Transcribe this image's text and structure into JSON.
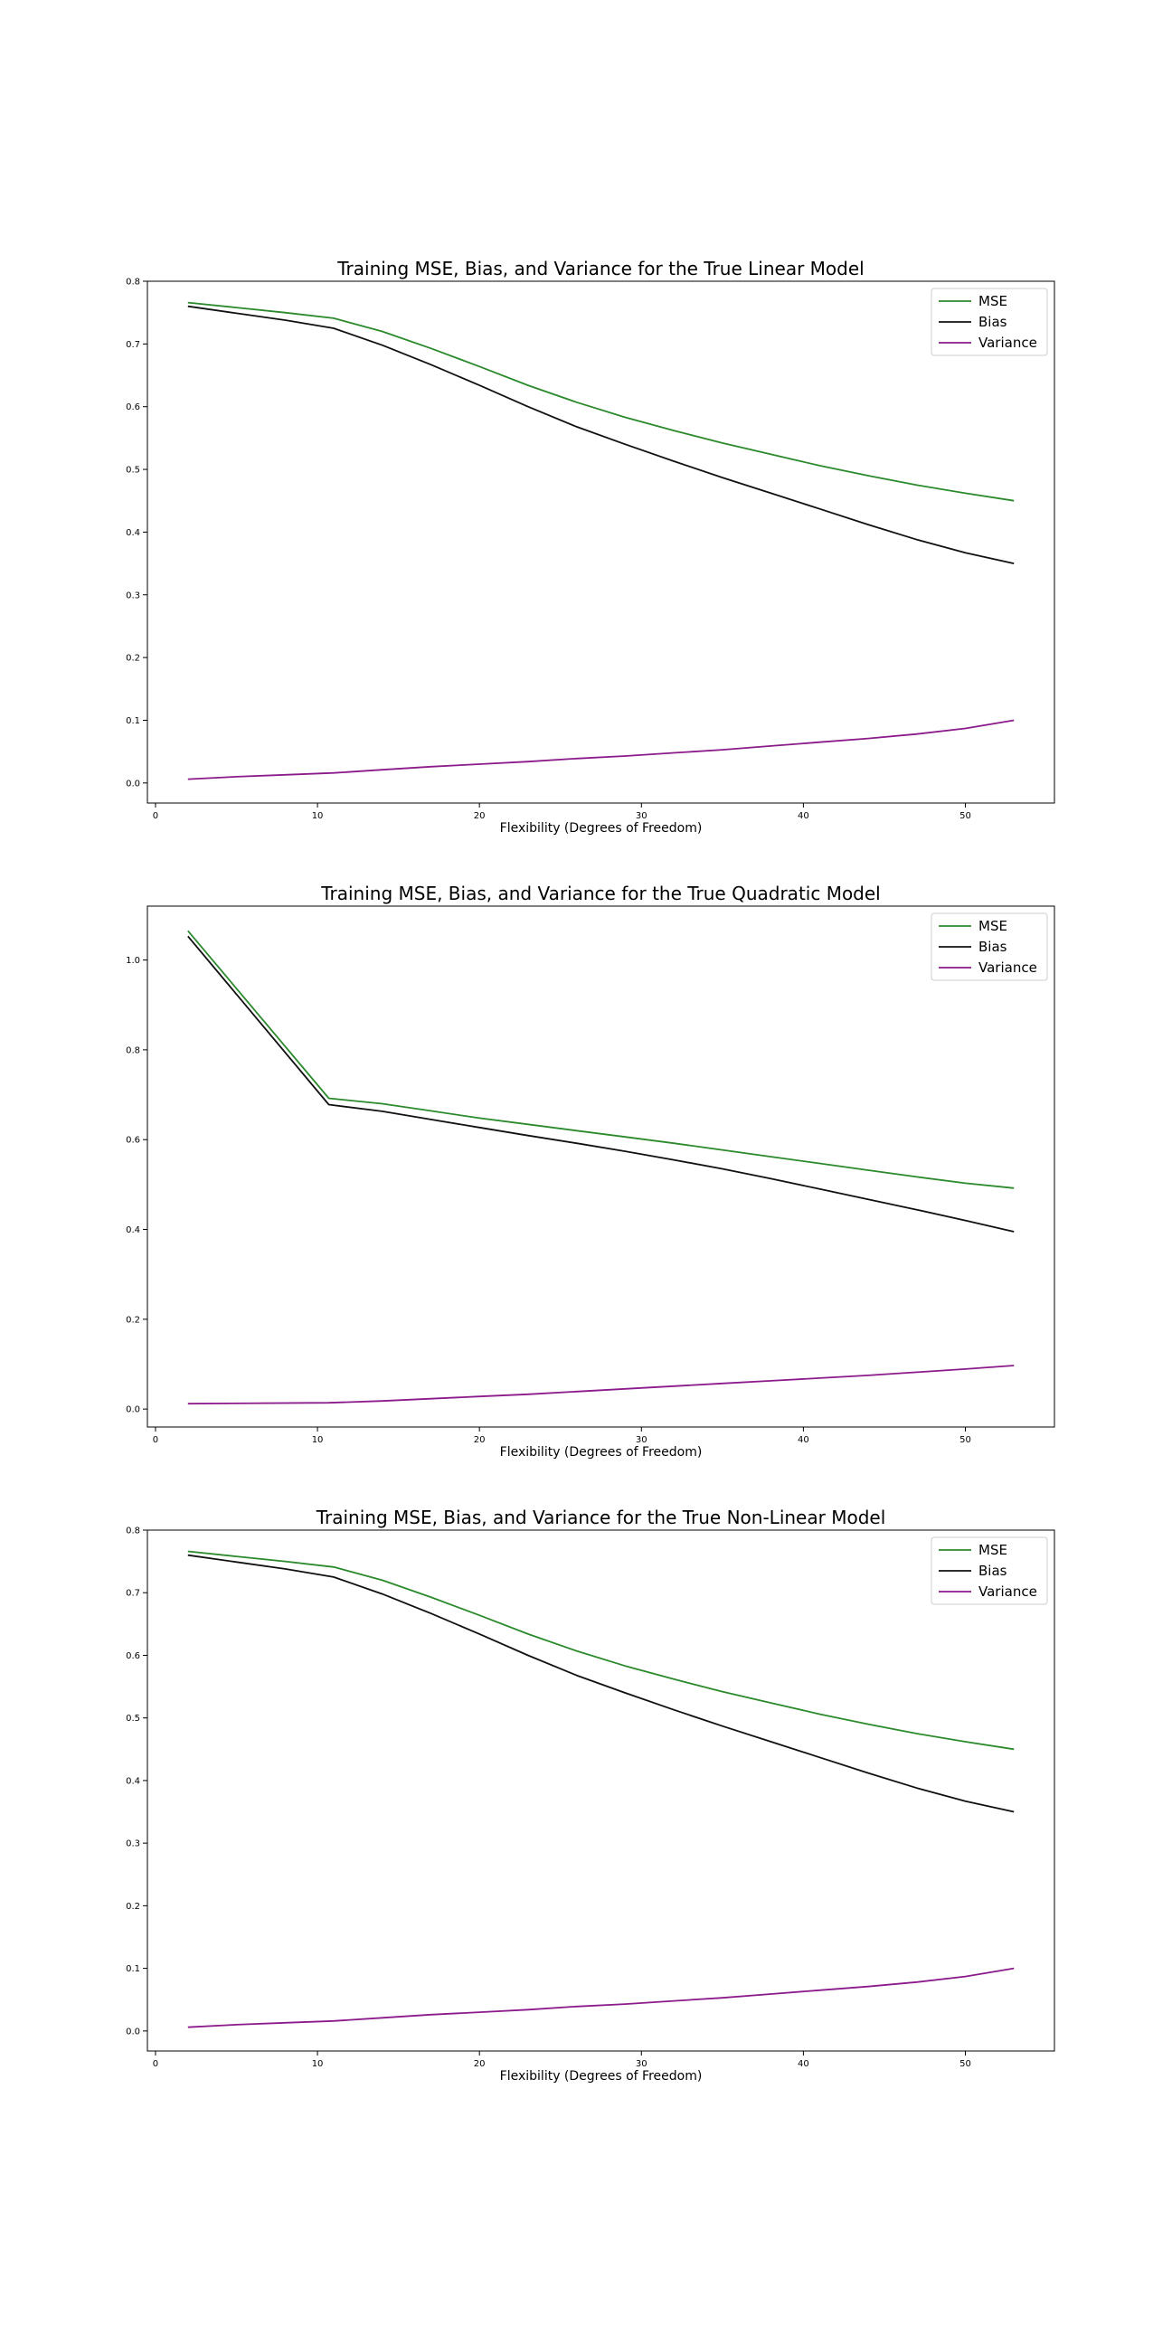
{
  "colors": {
    "mse": "#2b8a2b",
    "bias": "#111111",
    "variance": "#8b1a8b",
    "axes": "#000000",
    "background": "#ffffff"
  },
  "chart_data": [
    {
      "type": "line",
      "title": "Training MSE, Bias, and Variance for the True Linear Model",
      "xlabel": "Flexibility (Degrees of Freedom)",
      "ylabel": "",
      "xlim": [
        -0.5,
        55.5
      ],
      "ylim": [
        -0.032,
        0.8
      ],
      "xticks": [
        0,
        10,
        20,
        30,
        40,
        50
      ],
      "xtick_labels": [
        "0",
        "10",
        "20",
        "30",
        "40",
        "50"
      ],
      "yticks": [
        0.0,
        0.1,
        0.2,
        0.3,
        0.4,
        0.5,
        0.6,
        0.7,
        0.8
      ],
      "ytick_labels": [
        "0.0",
        "0.1",
        "0.2",
        "0.3",
        "0.4",
        "0.5",
        "0.6",
        "0.7",
        "0.8"
      ],
      "grid": false,
      "legend": "upper-right",
      "x": [
        2,
        5,
        8,
        11,
        14,
        17,
        20,
        23,
        26,
        29,
        32,
        35,
        38,
        41,
        44,
        47,
        50,
        53
      ],
      "series": [
        {
          "name": "MSE",
          "color_key": "mse",
          "values": [
            0.766,
            0.758,
            0.75,
            0.741,
            0.72,
            0.693,
            0.664,
            0.634,
            0.607,
            0.583,
            0.562,
            0.542,
            0.524,
            0.506,
            0.49,
            0.475,
            0.462,
            0.45
          ]
        },
        {
          "name": "Bias",
          "color_key": "bias",
          "values": [
            0.76,
            0.749,
            0.738,
            0.725,
            0.698,
            0.667,
            0.634,
            0.6,
            0.568,
            0.54,
            0.513,
            0.487,
            0.462,
            0.437,
            0.412,
            0.388,
            0.367,
            0.35
          ]
        },
        {
          "name": "Variance",
          "color_key": "variance",
          "values": [
            0.006,
            0.01,
            0.013,
            0.016,
            0.021,
            0.026,
            0.03,
            0.034,
            0.039,
            0.043,
            0.048,
            0.053,
            0.059,
            0.065,
            0.071,
            0.078,
            0.087,
            0.1
          ]
        }
      ]
    },
    {
      "type": "line",
      "title": "Training MSE, Bias, and Variance for the True Quadratic Model",
      "xlabel": "Flexibility (Degrees of Freedom)",
      "ylabel": "",
      "xlim": [
        -0.5,
        55.5
      ],
      "ylim": [
        -0.04,
        1.12
      ],
      "xticks": [
        0,
        10,
        20,
        30,
        40,
        50
      ],
      "xtick_labels": [
        "0",
        "10",
        "20",
        "30",
        "40",
        "50"
      ],
      "yticks": [
        0.0,
        0.2,
        0.4,
        0.6,
        0.8,
        1.0
      ],
      "ytick_labels": [
        "0.0",
        "0.2",
        "0.4",
        "0.6",
        "0.8",
        "1.0"
      ],
      "grid": false,
      "legend": "upper-right",
      "x": [
        2,
        10.7,
        14,
        17,
        20,
        23,
        26,
        29,
        32,
        35,
        38,
        41,
        44,
        47,
        50,
        53
      ],
      "series": [
        {
          "name": "MSE",
          "color_key": "mse",
          "values": [
            1.065,
            0.692,
            0.68,
            0.664,
            0.648,
            0.634,
            0.62,
            0.606,
            0.592,
            0.577,
            0.562,
            0.547,
            0.532,
            0.517,
            0.503,
            0.492
          ]
        },
        {
          "name": "Bias",
          "color_key": "bias",
          "values": [
            1.053,
            0.678,
            0.663,
            0.645,
            0.627,
            0.609,
            0.592,
            0.574,
            0.555,
            0.535,
            0.513,
            0.49,
            0.467,
            0.444,
            0.42,
            0.395
          ]
        },
        {
          "name": "Variance",
          "color_key": "variance",
          "values": [
            0.012,
            0.014,
            0.018,
            0.023,
            0.028,
            0.033,
            0.039,
            0.045,
            0.051,
            0.057,
            0.063,
            0.069,
            0.075,
            0.082,
            0.089,
            0.097
          ]
        }
      ]
    },
    {
      "type": "line",
      "title": "Training MSE, Bias, and Variance for the True Non-Linear Model",
      "xlabel": "Flexibility (Degrees of Freedom)",
      "ylabel": "",
      "xlim": [
        -0.5,
        55.5
      ],
      "ylim": [
        -0.032,
        0.8
      ],
      "xticks": [
        0,
        10,
        20,
        30,
        40,
        50
      ],
      "xtick_labels": [
        "0",
        "10",
        "20",
        "30",
        "40",
        "50"
      ],
      "yticks": [
        0.0,
        0.1,
        0.2,
        0.3,
        0.4,
        0.5,
        0.6,
        0.7,
        0.8
      ],
      "ytick_labels": [
        "0.0",
        "0.1",
        "0.2",
        "0.3",
        "0.4",
        "0.5",
        "0.6",
        "0.7",
        "0.8"
      ],
      "grid": false,
      "legend": "upper-right",
      "x": [
        2,
        5,
        8,
        11,
        14,
        17,
        20,
        23,
        26,
        29,
        32,
        35,
        38,
        41,
        44,
        47,
        50,
        53
      ],
      "series": [
        {
          "name": "MSE",
          "color_key": "mse",
          "values": [
            0.766,
            0.758,
            0.75,
            0.741,
            0.72,
            0.693,
            0.664,
            0.634,
            0.607,
            0.583,
            0.562,
            0.542,
            0.524,
            0.506,
            0.49,
            0.475,
            0.462,
            0.45
          ]
        },
        {
          "name": "Bias",
          "color_key": "bias",
          "values": [
            0.76,
            0.749,
            0.738,
            0.725,
            0.698,
            0.667,
            0.634,
            0.6,
            0.568,
            0.54,
            0.513,
            0.487,
            0.462,
            0.437,
            0.412,
            0.388,
            0.367,
            0.35
          ]
        },
        {
          "name": "Variance",
          "color_key": "variance",
          "values": [
            0.006,
            0.01,
            0.013,
            0.016,
            0.021,
            0.026,
            0.03,
            0.034,
            0.039,
            0.043,
            0.048,
            0.053,
            0.059,
            0.065,
            0.071,
            0.078,
            0.087,
            0.1
          ]
        }
      ]
    }
  ]
}
